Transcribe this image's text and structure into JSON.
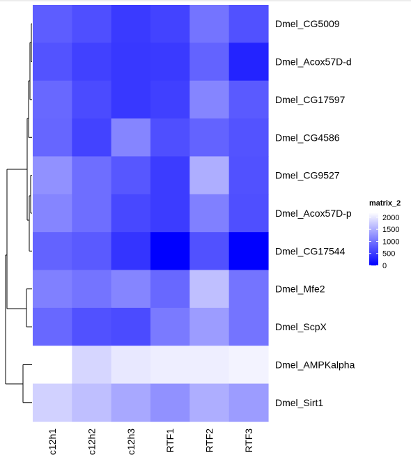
{
  "chart_data": {
    "type": "heatmap",
    "rows": [
      "Dmel_CG5009",
      "Dmel_Acox57D-d",
      "Dmel_CG17597",
      "Dmel_CG4586",
      "Dmel_CG9527",
      "Dmel_Acox57D-p",
      "Dmel_CG17544",
      "Dmel_Mfe2",
      "Dmel_ScpX",
      "Dmel_AMPKalpha",
      "Dmel_Sirt1"
    ],
    "columns": [
      "c12h1",
      "c12h2",
      "c12h3",
      "RTF1",
      "RTF2",
      "RTF3"
    ],
    "values": [
      [
        800,
        680,
        500,
        580,
        1000,
        700
      ],
      [
        720,
        560,
        480,
        500,
        850,
        300
      ],
      [
        900,
        650,
        480,
        550,
        1150,
        780
      ],
      [
        880,
        580,
        1150,
        680,
        850,
        720
      ],
      [
        1250,
        950,
        750,
        520,
        1500,
        700
      ],
      [
        1150,
        950,
        620,
        520,
        1100,
        680
      ],
      [
        850,
        780,
        450,
        0,
        700,
        0
      ],
      [
        1100,
        1000,
        1150,
        900,
        1650,
        1000
      ],
      [
        900,
        700,
        650,
        1050,
        1350,
        1000
      ],
      [
        2200,
        1850,
        2000,
        2050,
        2050,
        2100
      ],
      [
        1800,
        1650,
        1450,
        1250,
        1500,
        1350
      ]
    ],
    "legend": {
      "title": "matrix_2",
      "ticks": [
        0,
        500,
        1000,
        1500,
        2000
      ],
      "min": 0,
      "max": 2200
    },
    "colors": {
      "low": "#0000ff",
      "high": "#ffffff"
    },
    "row_dendrogram": "left",
    "legend_position": "right"
  }
}
